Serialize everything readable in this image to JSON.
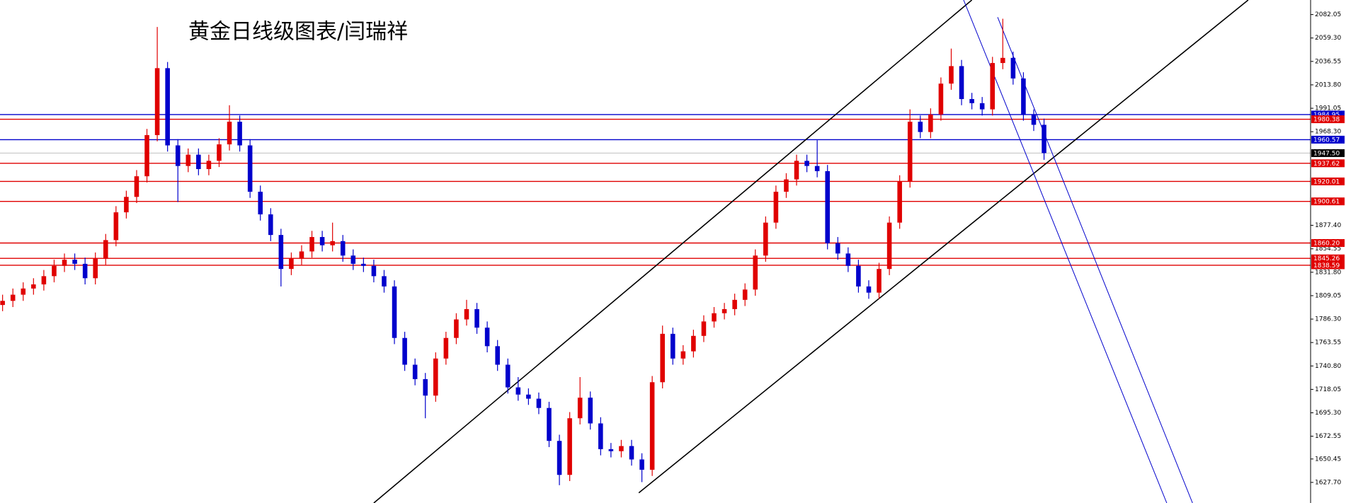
{
  "chart_data": {
    "type": "candlestick",
    "title": "黄金日线级图表/闫瑞祥",
    "up_color": "#e00000",
    "down_color": "#0000cc",
    "xlim": [
      -0.25,
      126.85
    ],
    "ylim": [
      1607.7,
      2096.2
    ],
    "yticks": [
      2082.05,
      {
        "value": 2059.3,
        "label": "2059.30"
      },
      2036.55,
      {
        "value": 2013.8,
        "label": "2013.80"
      },
      1991.05,
      {
        "value": 1968.3,
        "label": "1968.30"
      },
      {
        "value": 1877.4,
        "label": "1877.40"
      },
      1854.55,
      {
        "value": 1831.8,
        "label": "1831.80"
      },
      1809.05,
      {
        "value": 1786.3,
        "label": "1786.30"
      },
      1763.55,
      {
        "value": 1740.8,
        "label": "1740.80"
      },
      1718.05,
      {
        "value": 1695.3,
        "label": "1695.30"
      },
      1672.55,
      1650.45,
      {
        "value": 1627.7,
        "label": "1627.70"
      }
    ],
    "levels": [
      {
        "value": 1984.95,
        "color": "#0000cc"
      },
      {
        "value": 1980.38,
        "color": "#e00000"
      },
      {
        "value": 1960.57,
        "color": "#0000cc"
      },
      {
        "value": 1947.5,
        "label": "1947.50",
        "color": "#000000",
        "line_color": "#c0c0c0"
      },
      {
        "value": 1937.62,
        "color": "#e00000"
      },
      {
        "value": 1920.01,
        "color": "#e00000"
      },
      {
        "value": 1900.61,
        "color": "#e00000"
      },
      {
        "value": 1860.2,
        "label": "1860.20",
        "color": "#e00000"
      },
      {
        "value": 1845.26,
        "color": "#e00000"
      },
      {
        "value": 1838.59,
        "color": "#e00000"
      }
    ],
    "trendlines": [
      {
        "color": "#000000",
        "x": [
          36,
          94
        ],
        "y": [
          1607.7,
          2096.2
        ]
      },
      {
        "color": "#000000",
        "x": [
          61.7,
          120.8
        ],
        "y": [
          1617.6,
          2096.2
        ]
      },
      {
        "color": "#0000cc",
        "x": [
          93.2,
          112.9
        ],
        "y": [
          2096.2,
          1607.7
        ]
      },
      {
        "color": "#0000cc",
        "x": [
          96.5,
          115.4
        ],
        "y": [
          2079.5,
          1607.7
        ]
      }
    ],
    "candles": [
      [
        1800,
        1810,
        1794,
        1804
      ],
      [
        1804,
        1816,
        1798,
        1810
      ],
      [
        1810,
        1822,
        1804,
        1816
      ],
      [
        1816,
        1826,
        1810,
        1820
      ],
      [
        1820,
        1834,
        1814,
        1828
      ],
      [
        1828,
        1844,
        1822,
        1838
      ],
      [
        1838,
        1850,
        1832,
        1844
      ],
      [
        1844,
        1850,
        1834,
        1840
      ],
      [
        1840,
        1846,
        1820,
        1826
      ],
      [
        1826,
        1851,
        1820,
        1845
      ],
      [
        1845,
        1869,
        1839,
        1863
      ],
      [
        1863,
        1896,
        1857,
        1890
      ],
      [
        1890,
        1911,
        1884,
        1905
      ],
      [
        1905,
        1931,
        1899,
        1925
      ],
      [
        1925,
        1971,
        1919,
        1965
      ],
      [
        1965,
        2070,
        1959,
        2030
      ],
      [
        2030,
        2036,
        1949,
        1955
      ],
      [
        1955,
        1961,
        1900,
        1935
      ],
      [
        1935,
        1952,
        1929,
        1946
      ],
      [
        1946,
        1952,
        1926,
        1932
      ],
      [
        1932,
        1946,
        1926,
        1940
      ],
      [
        1940,
        1962,
        1934,
        1956
      ],
      [
        1956,
        1994,
        1950,
        1978
      ],
      [
        1978,
        1984,
        1949,
        1955
      ],
      [
        1955,
        1961,
        1904,
        1910
      ],
      [
        1910,
        1916,
        1882,
        1888
      ],
      [
        1888,
        1894,
        1862,
        1868
      ],
      [
        1868,
        1874,
        1818,
        1835
      ],
      [
        1835,
        1851,
        1829,
        1845
      ],
      [
        1845,
        1858,
        1839,
        1852
      ],
      [
        1852,
        1872,
        1846,
        1866
      ],
      [
        1866,
        1872,
        1852,
        1858
      ],
      [
        1858,
        1880,
        1852,
        1862
      ],
      [
        1862,
        1868,
        1842,
        1848
      ],
      [
        1848,
        1854,
        1834,
        1840
      ],
      [
        1840,
        1846,
        1832,
        1838
      ],
      [
        1838,
        1844,
        1822,
        1828
      ],
      [
        1828,
        1834,
        1812,
        1818
      ],
      [
        1818,
        1824,
        1762,
        1768
      ],
      [
        1768,
        1774,
        1736,
        1742
      ],
      [
        1742,
        1748,
        1722,
        1728
      ],
      [
        1728,
        1734,
        1690,
        1712
      ],
      [
        1712,
        1754,
        1706,
        1748
      ],
      [
        1748,
        1774,
        1742,
        1768
      ],
      [
        1768,
        1792,
        1762,
        1786
      ],
      [
        1786,
        1805,
        1780,
        1796
      ],
      [
        1796,
        1802,
        1772,
        1778
      ],
      [
        1778,
        1784,
        1754,
        1760
      ],
      [
        1760,
        1766,
        1736,
        1742
      ],
      [
        1742,
        1748,
        1714,
        1720
      ],
      [
        1720,
        1730,
        1707,
        1713
      ],
      [
        1713,
        1719,
        1703,
        1709
      ],
      [
        1709,
        1715,
        1694,
        1700
      ],
      [
        1700,
        1706,
        1662,
        1668
      ],
      [
        1668,
        1674,
        1625,
        1635
      ],
      [
        1635,
        1696,
        1629,
        1690
      ],
      [
        1690,
        1730,
        1684,
        1710
      ],
      [
        1710,
        1716,
        1679,
        1685
      ],
      [
        1685,
        1691,
        1654,
        1660
      ],
      [
        1660,
        1666,
        1652,
        1658
      ],
      [
        1658,
        1669,
        1652,
        1663
      ],
      [
        1663,
        1669,
        1644,
        1650
      ],
      [
        1650,
        1656,
        1628,
        1640
      ],
      [
        1640,
        1731,
        1634,
        1725
      ],
      [
        1725,
        1780,
        1719,
        1772
      ],
      [
        1772,
        1778,
        1742,
        1748
      ],
      [
        1748,
        1761,
        1742,
        1755
      ],
      [
        1755,
        1776,
        1749,
        1770
      ],
      [
        1770,
        1790,
        1764,
        1784
      ],
      [
        1784,
        1798,
        1778,
        1792
      ],
      [
        1792,
        1802,
        1786,
        1796
      ],
      [
        1796,
        1811,
        1790,
        1805
      ],
      [
        1805,
        1821,
        1799,
        1815
      ],
      [
        1815,
        1854,
        1809,
        1848
      ],
      [
        1848,
        1886,
        1842,
        1880
      ],
      [
        1880,
        1916,
        1874,
        1910
      ],
      [
        1910,
        1928,
        1904,
        1922
      ],
      [
        1922,
        1946,
        1916,
        1940
      ],
      [
        1940,
        1946,
        1929,
        1935
      ],
      [
        1935,
        1960,
        1924,
        1930
      ],
      [
        1930,
        1936,
        1854,
        1860
      ],
      [
        1860,
        1866,
        1844,
        1850
      ],
      [
        1850,
        1856,
        1832,
        1838
      ],
      [
        1838,
        1844,
        1812,
        1818
      ],
      [
        1818,
        1824,
        1806,
        1812
      ],
      [
        1812,
        1841,
        1806,
        1835
      ],
      [
        1835,
        1886,
        1829,
        1880
      ],
      [
        1880,
        1926,
        1874,
        1920
      ],
      [
        1920,
        1990,
        1914,
        1978
      ],
      [
        1978,
        1984,
        1962,
        1968
      ],
      [
        1968,
        1991,
        1962,
        1985
      ],
      [
        1985,
        2021,
        1979,
        2015
      ],
      [
        2015,
        2049,
        2009,
        2032
      ],
      [
        2032,
        2038,
        1994,
        2000
      ],
      [
        2000,
        2006,
        1990,
        1996
      ],
      [
        1996,
        2002,
        1984,
        1990
      ],
      [
        1990,
        2041,
        1984,
        2035
      ],
      [
        2035,
        2078,
        2029,
        2040
      ],
      [
        2040,
        2046,
        2014,
        2020
      ],
      [
        2020,
        2026,
        1979,
        1985
      ],
      [
        1985,
        1990,
        1969,
        1975
      ],
      [
        1975,
        1981,
        1941,
        1947.5
      ]
    ]
  }
}
